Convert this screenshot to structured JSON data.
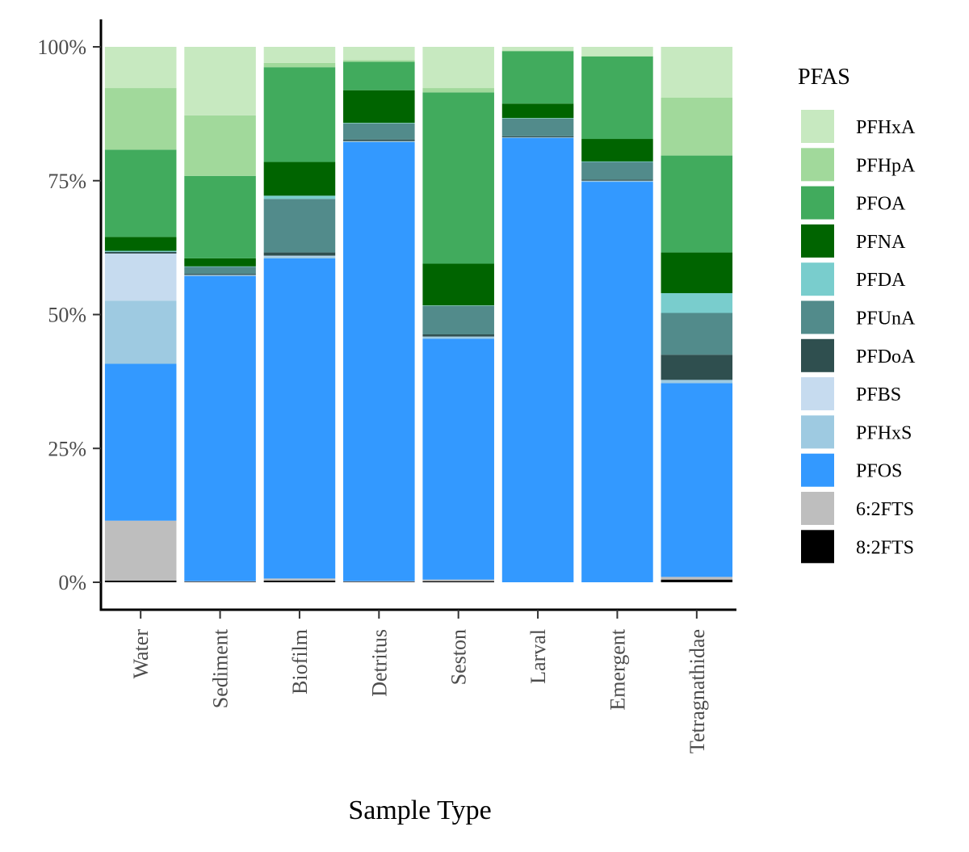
{
  "chart_data": {
    "type": "bar",
    "stacked": true,
    "normalized": true,
    "xlabel": "Sample Type",
    "ylabel": "",
    "ylim": [
      0,
      1
    ],
    "y_ticks": [
      0,
      0.25,
      0.5,
      0.75,
      1.0
    ],
    "y_tick_labels": [
      "0%",
      "25%",
      "50%",
      "75%",
      "100%"
    ],
    "x_tick_rotation": "vertical",
    "grid": false,
    "legend": {
      "title": "PFAS",
      "position": "right"
    },
    "categories": [
      "Water",
      "Sediment",
      "Biofilm",
      "Detritus",
      "Seston",
      "Larval",
      "Emergent",
      "Tetragnathidae"
    ],
    "series": [
      {
        "name": "8:2FTS",
        "color": "#000000",
        "values": [
          0.003,
          0.001,
          0.003,
          0.001,
          0.002,
          0.0,
          0.0,
          0.005
        ]
      },
      {
        "name": "6:2FTS",
        "color": "#bebebe",
        "values": [
          0.112,
          0.001,
          0.004,
          0.001,
          0.003,
          0.0,
          0.0,
          0.005
        ]
      },
      {
        "name": "PFOS",
        "color": "#3399ff",
        "values": [
          0.293,
          0.57,
          0.598,
          0.82,
          0.45,
          0.83,
          0.748,
          0.362
        ]
      },
      {
        "name": "PFHxS",
        "color": "#9ecae1",
        "values": [
          0.118,
          0.002,
          0.004,
          0.002,
          0.004,
          0.001,
          0.002,
          0.006
        ]
      },
      {
        "name": "PFBS",
        "color": "#c6dbef",
        "values": [
          0.088,
          0.0,
          0.001,
          0.0,
          0.0,
          0.0,
          0.0,
          0.0
        ]
      },
      {
        "name": "PFDoA",
        "color": "#2f4f4f",
        "values": [
          0.003,
          0.002,
          0.006,
          0.003,
          0.004,
          0.002,
          0.002,
          0.047
        ]
      },
      {
        "name": "PFUnA",
        "color": "#528b8b",
        "values": [
          0.0,
          0.013,
          0.1,
          0.03,
          0.053,
          0.033,
          0.033,
          0.078
        ]
      },
      {
        "name": "PFDA",
        "color": "#79cdcd",
        "values": [
          0.002,
          0.001,
          0.006,
          0.001,
          0.001,
          0.001,
          0.001,
          0.037
        ]
      },
      {
        "name": "PFNA",
        "color": "#006400",
        "values": [
          0.026,
          0.015,
          0.063,
          0.061,
          0.078,
          0.027,
          0.042,
          0.076
        ]
      },
      {
        "name": "PFOA",
        "color": "#41ab5d",
        "values": [
          0.163,
          0.154,
          0.177,
          0.053,
          0.32,
          0.098,
          0.154,
          0.181
        ]
      },
      {
        "name": "PFHpA",
        "color": "#a1d99b",
        "values": [
          0.115,
          0.113,
          0.008,
          0.003,
          0.008,
          0.001,
          0.001,
          0.108
        ]
      },
      {
        "name": "PFHxA",
        "color": "#c7e9c0",
        "values": [
          0.077,
          0.128,
          0.03,
          0.025,
          0.077,
          0.007,
          0.017,
          0.095
        ]
      }
    ]
  }
}
